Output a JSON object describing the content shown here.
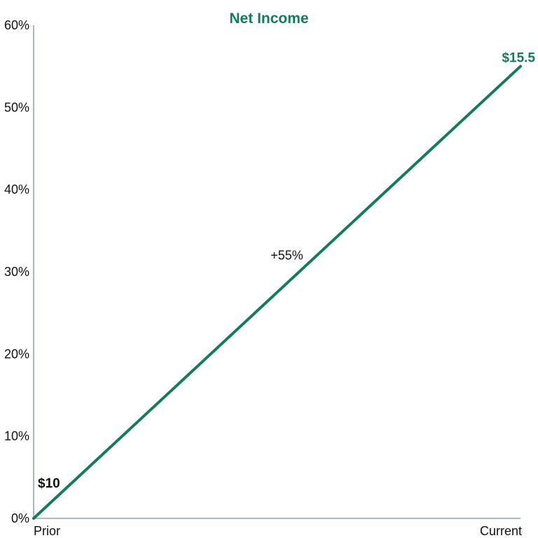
{
  "colors": {
    "accent": "#177a5a",
    "axis": "#8fa3b8",
    "text": "#111111"
  },
  "chart_data": {
    "type": "line",
    "title": "Net Income",
    "categories": [
      "Prior",
      "Current"
    ],
    "series": [
      {
        "values": [
          0,
          55
        ]
      }
    ],
    "ylim": [
      0,
      60
    ],
    "yticks": [
      0,
      10,
      20,
      30,
      40,
      50,
      60
    ],
    "ytick_labels": [
      "0%",
      "10%",
      "20%",
      "30%",
      "40%",
      "50%",
      "60%"
    ],
    "point_labels": [
      "$10",
      "$15.5"
    ],
    "annotation": {
      "text": "+55%",
      "y": 32
    },
    "grid": false,
    "legend": "none"
  }
}
